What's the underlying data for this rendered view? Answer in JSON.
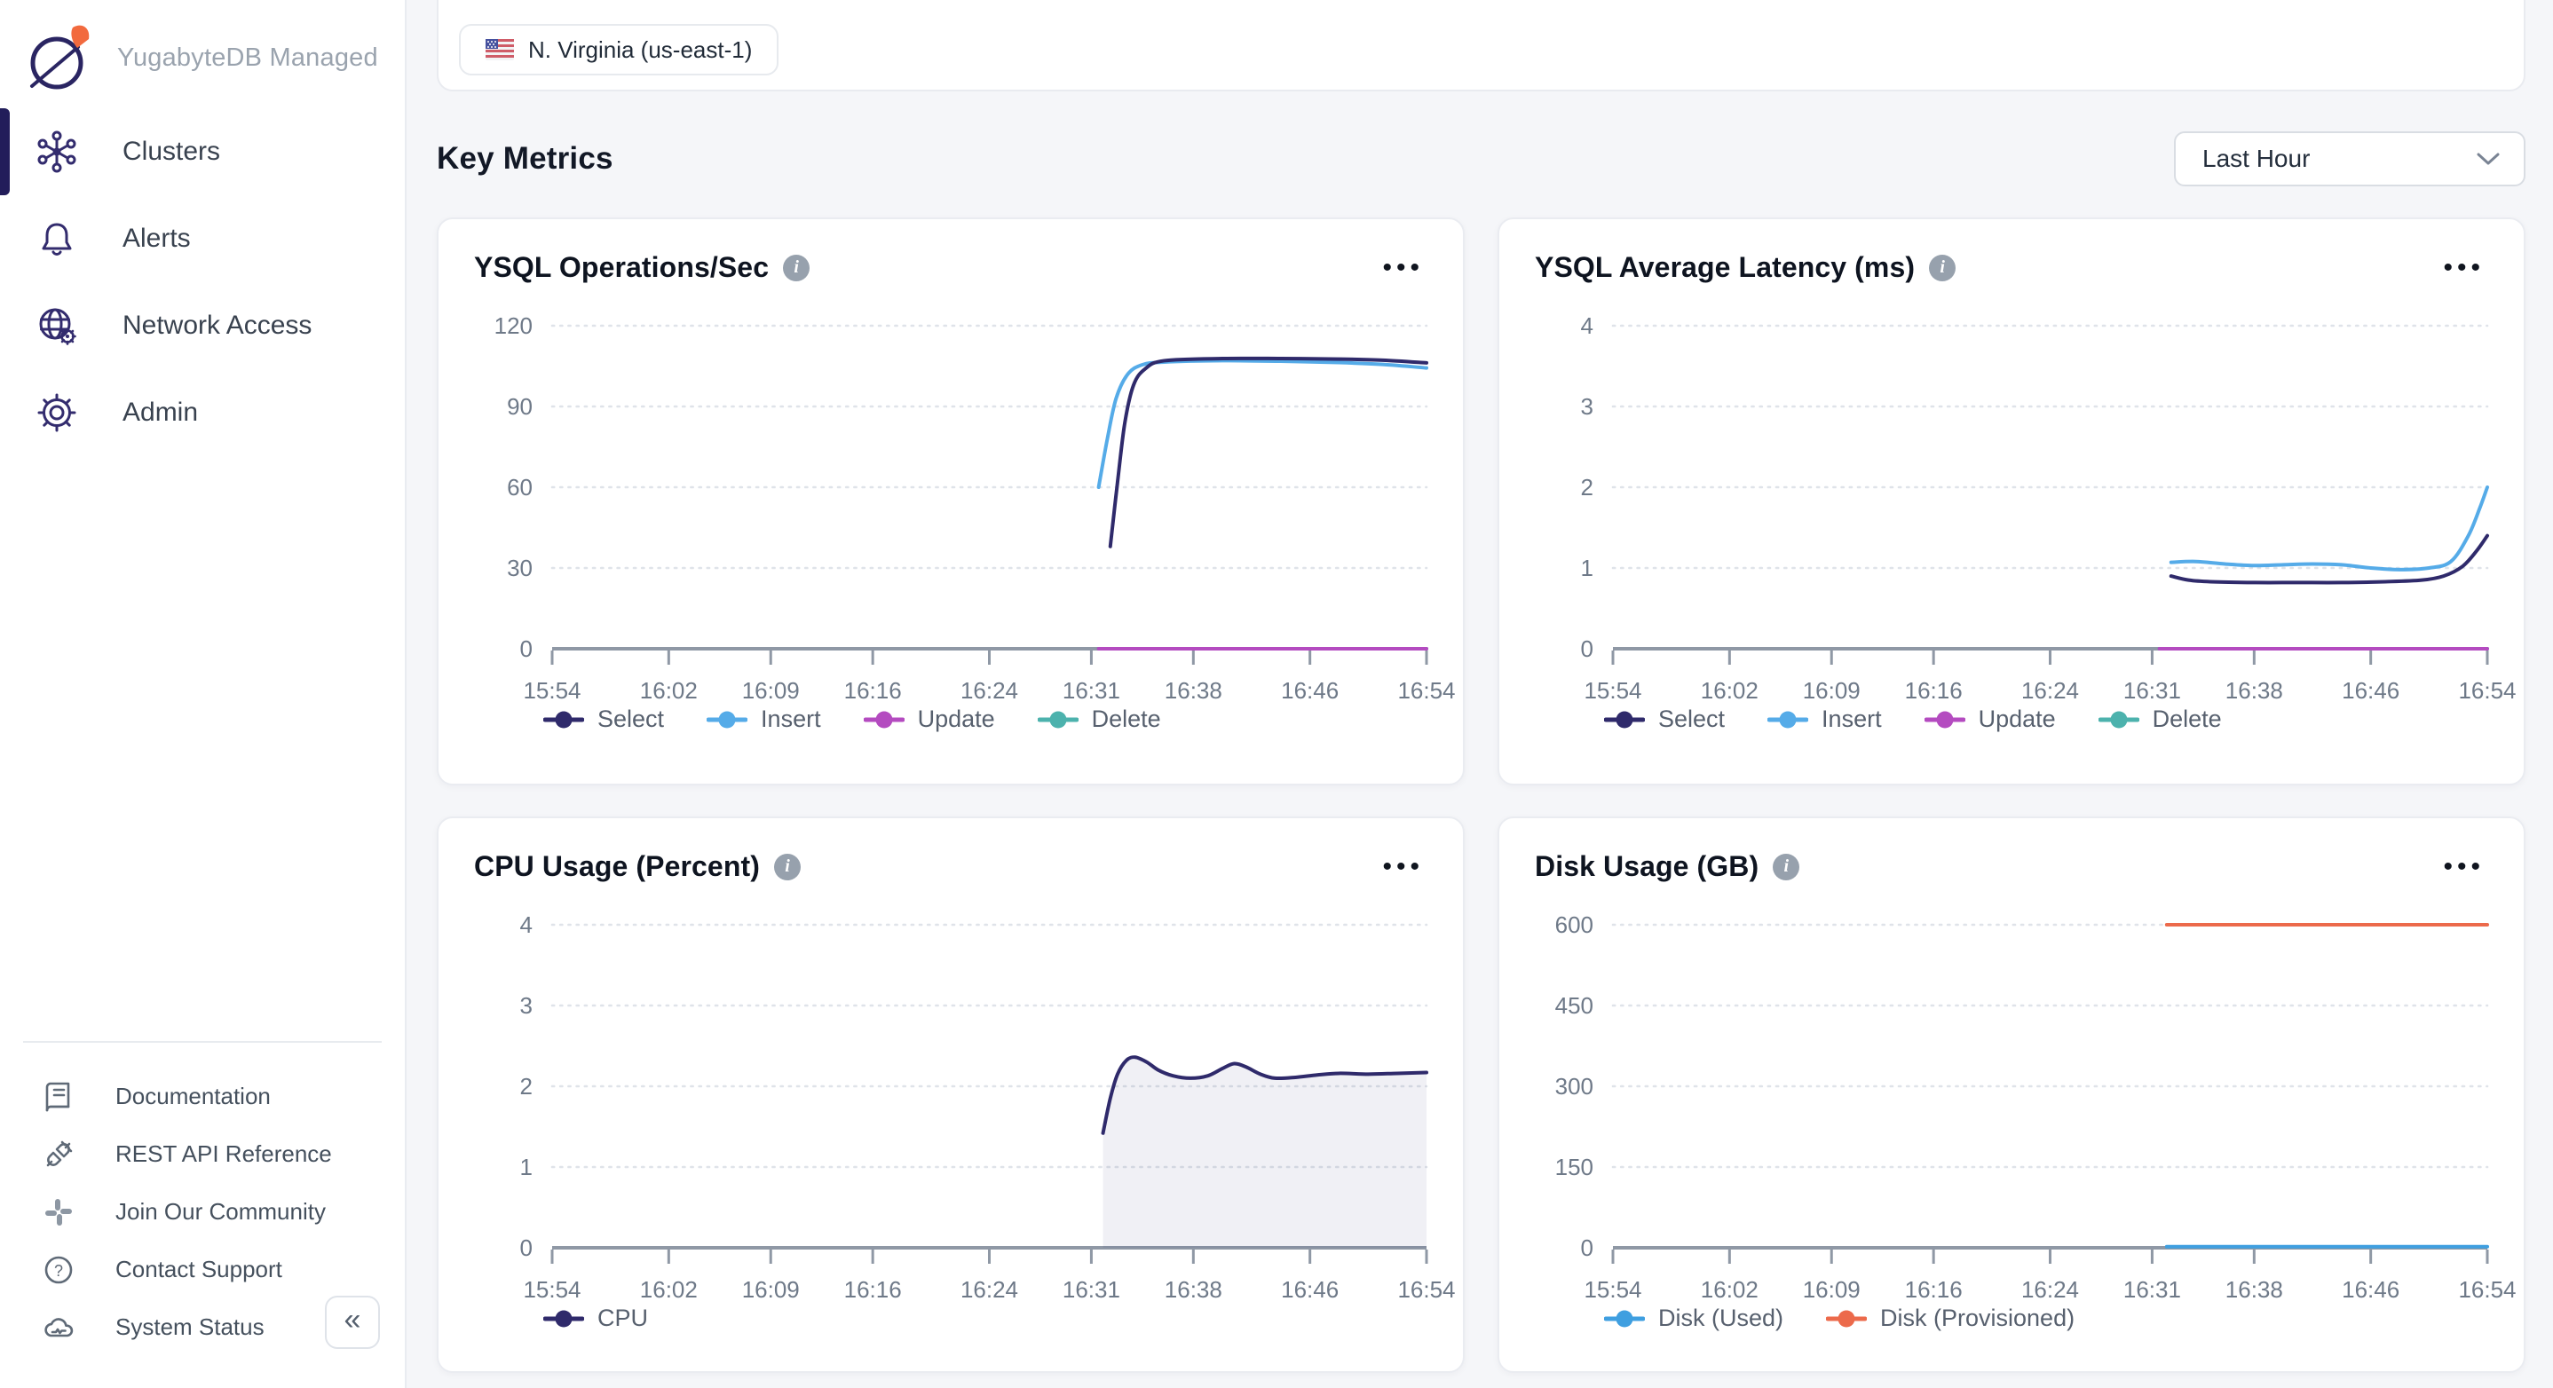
{
  "sidebar": {
    "brand": "YugabyteDB Managed",
    "items": [
      {
        "label": "Clusters",
        "icon": "clusters-icon",
        "active": true
      },
      {
        "label": "Alerts",
        "icon": "bell-icon",
        "active": false
      },
      {
        "label": "Network Access",
        "icon": "globe-gear-icon",
        "active": false
      },
      {
        "label": "Admin",
        "icon": "gear-icon",
        "active": false
      }
    ],
    "bottom_items": [
      {
        "label": "Documentation",
        "icon": "book-icon"
      },
      {
        "label": "REST API Reference",
        "icon": "plug-icon"
      },
      {
        "label": "Join Our Community",
        "icon": "slack-icon"
      },
      {
        "label": "Contact Support",
        "icon": "question-circle-icon"
      },
      {
        "label": "System Status",
        "icon": "cloud-status-icon"
      }
    ]
  },
  "topbar": {
    "region_label": "N. Virginia (us-east-1)",
    "flag": "us-flag"
  },
  "section": {
    "title": "Key Metrics",
    "time_range_value": "Last Hour"
  },
  "icons": {
    "info": "i",
    "ellipsis": "•••",
    "collapse": "«",
    "question": "?"
  },
  "colors": {
    "select_navy": "#2f2a6b",
    "insert_blue": "#55abe8",
    "update_magenta": "#b44bc0",
    "delete_teal": "#4cb2ad",
    "disk_used_blue": "#3f9fe0",
    "disk_provisioned_orange": "#ec6a4b",
    "grid": "#dfe3e9",
    "axis": "#8f98a5",
    "tick_text": "#6e7988",
    "page_bg": "#f5f6f9"
  },
  "chart_data": [
    {
      "type": "line",
      "title": "YSQL Operations/Sec",
      "ylim": [
        0,
        120
      ],
      "y_ticks": [
        0,
        30,
        60,
        90,
        120
      ],
      "x_ticks": {
        "labels": [
          "15:54",
          "16:02",
          "16:09",
          "16:16",
          "16:24",
          "16:31",
          "16:38",
          "16:46",
          "16:54"
        ],
        "t": [
          0,
          8,
          15,
          22,
          30,
          37,
          44,
          52,
          60
        ]
      },
      "legend_position": "bottom-left",
      "grid": "dotted-horizontal",
      "series": [
        {
          "name": "Select",
          "color": "#2f2a6b",
          "points": [
            [
              38.3,
              38
            ],
            [
              38.8,
              62
            ],
            [
              39.3,
              84
            ],
            [
              39.9,
              98
            ],
            [
              40.7,
              104
            ],
            [
              42,
              107
            ],
            [
              46,
              107.8
            ],
            [
              50,
              107.8
            ],
            [
              54,
              107.6
            ],
            [
              57,
              107.2
            ],
            [
              60,
              106.2
            ]
          ]
        },
        {
          "name": "Insert",
          "color": "#55abe8",
          "points": [
            [
              37.5,
              60
            ],
            [
              38.1,
              78
            ],
            [
              38.7,
              93
            ],
            [
              39.5,
              102
            ],
            [
              40.5,
              105.5
            ],
            [
              42,
              106.5
            ],
            [
              46,
              107
            ],
            [
              50,
              106.8
            ],
            [
              54,
              106.3
            ],
            [
              57,
              105.6
            ],
            [
              60,
              104.3
            ]
          ]
        },
        {
          "name": "Update",
          "color": "#b44bc0",
          "points": [
            [
              37.5,
              0
            ],
            [
              60,
              0
            ]
          ]
        },
        {
          "name": "Delete",
          "color": "#4cb2ad",
          "points": [
            [
              37.5,
              0
            ],
            [
              60,
              0
            ]
          ]
        }
      ]
    },
    {
      "type": "line",
      "title": "YSQL Average Latency (ms)",
      "ylim": [
        0,
        4
      ],
      "y_ticks": [
        0,
        1,
        2,
        3,
        4
      ],
      "x_ticks": {
        "labels": [
          "15:54",
          "16:02",
          "16:09",
          "16:16",
          "16:24",
          "16:31",
          "16:38",
          "16:46",
          "16:54"
        ],
        "t": [
          0,
          8,
          15,
          22,
          30,
          37,
          44,
          52,
          60
        ]
      },
      "legend_position": "bottom-left",
      "grid": "dotted-horizontal",
      "series": [
        {
          "name": "Select",
          "color": "#2f2a6b",
          "points": [
            [
              38.3,
              0.9
            ],
            [
              39.5,
              0.85
            ],
            [
              41,
              0.83
            ],
            [
              44,
              0.82
            ],
            [
              47,
              0.82
            ],
            [
              50,
              0.82
            ],
            [
              53,
              0.83
            ],
            [
              55.5,
              0.85
            ],
            [
              57,
              0.9
            ],
            [
              58.3,
              1.02
            ],
            [
              59.3,
              1.22
            ],
            [
              60,
              1.4
            ]
          ]
        },
        {
          "name": "Insert",
          "color": "#55abe8",
          "points": [
            [
              38.3,
              1.07
            ],
            [
              40,
              1.08
            ],
            [
              42,
              1.05
            ],
            [
              44,
              1.03
            ],
            [
              46,
              1.04
            ],
            [
              48,
              1.05
            ],
            [
              50,
              1.04
            ],
            [
              52,
              1.0
            ],
            [
              54,
              0.98
            ],
            [
              56,
              1.0
            ],
            [
              57.5,
              1.08
            ],
            [
              58.7,
              1.4
            ],
            [
              59.5,
              1.75
            ],
            [
              60,
              2.0
            ]
          ]
        },
        {
          "name": "Update",
          "color": "#b44bc0",
          "points": [
            [
              37.5,
              0
            ],
            [
              60,
              0
            ]
          ]
        },
        {
          "name": "Delete",
          "color": "#4cb2ad",
          "points": [
            [
              37.5,
              0
            ],
            [
              60,
              0
            ]
          ]
        }
      ]
    },
    {
      "type": "area-line",
      "title": "CPU Usage (Percent)",
      "ylim": [
        0,
        4
      ],
      "y_ticks": [
        0,
        1,
        2,
        3,
        4
      ],
      "x_ticks": {
        "labels": [
          "15:54",
          "16:02",
          "16:09",
          "16:16",
          "16:24",
          "16:31",
          "16:38",
          "16:46",
          "16:54"
        ],
        "t": [
          0,
          8,
          15,
          22,
          30,
          37,
          44,
          52,
          60
        ]
      },
      "legend_position": "bottom-left",
      "grid": "dotted-horizontal",
      "series": [
        {
          "name": "CPU",
          "color": "#2f2a6b",
          "fill": "rgba(47,42,107,0.07)",
          "points": [
            [
              37.8,
              1.42
            ],
            [
              38.3,
              1.85
            ],
            [
              38.8,
              2.15
            ],
            [
              39.4,
              2.32
            ],
            [
              40,
              2.36
            ],
            [
              40.8,
              2.3
            ],
            [
              41.6,
              2.2
            ],
            [
              42.6,
              2.13
            ],
            [
              43.8,
              2.1
            ],
            [
              45,
              2.13
            ],
            [
              46,
              2.22
            ],
            [
              46.8,
              2.28
            ],
            [
              47.6,
              2.24
            ],
            [
              48.6,
              2.15
            ],
            [
              49.6,
              2.1
            ],
            [
              51,
              2.11
            ],
            [
              52.5,
              2.14
            ],
            [
              54,
              2.16
            ],
            [
              56,
              2.15
            ],
            [
              58,
              2.16
            ],
            [
              60,
              2.17
            ]
          ]
        }
      ]
    },
    {
      "type": "line",
      "title": "Disk Usage (GB)",
      "ylim": [
        0,
        600
      ],
      "y_ticks": [
        0,
        150,
        300,
        450,
        600
      ],
      "x_ticks": {
        "labels": [
          "15:54",
          "16:02",
          "16:09",
          "16:16",
          "16:24",
          "16:31",
          "16:38",
          "16:46",
          "16:54"
        ],
        "t": [
          0,
          8,
          15,
          22,
          30,
          37,
          44,
          52,
          60
        ]
      },
      "legend_position": "bottom-left",
      "grid": "dotted-horizontal",
      "series": [
        {
          "name": "Disk (Used)",
          "color": "#3f9fe0",
          "points": [
            [
              38,
              2
            ],
            [
              60,
              2
            ]
          ]
        },
        {
          "name": "Disk (Provisioned)",
          "color": "#ec6a4b",
          "points": [
            [
              38,
              600
            ],
            [
              60,
              600
            ]
          ]
        }
      ]
    }
  ]
}
